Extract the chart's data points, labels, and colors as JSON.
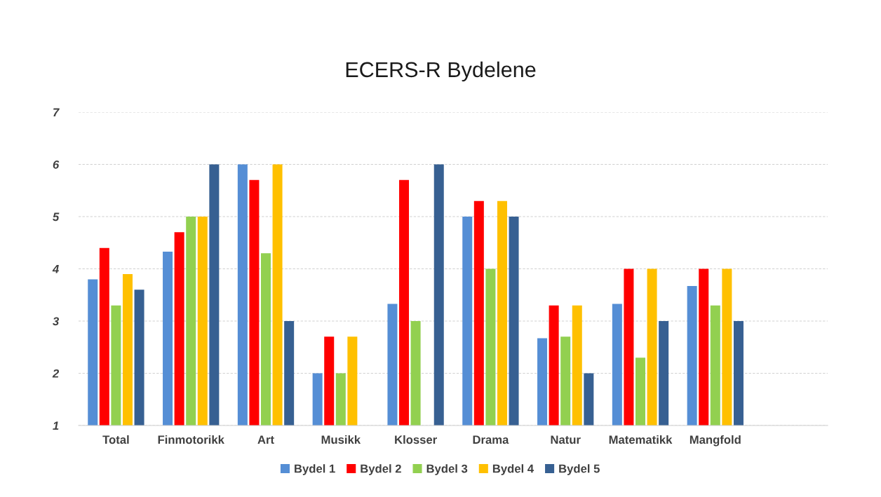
{
  "chart_data": {
    "type": "bar",
    "title": "ECERS-R Bydelene",
    "categories": [
      "Total",
      "Finmotorikk",
      "Art",
      "Musikk",
      "Klosser",
      "Drama",
      "Natur",
      "Matematikk",
      "Mangfold",
      null
    ],
    "series": [
      {
        "name": "Bydel 1",
        "color": "#558ed5",
        "values": [
          3.8,
          4.33,
          6,
          2,
          3.33,
          5,
          2.67,
          3.33,
          3.67,
          null
        ]
      },
      {
        "name": "Bydel 2",
        "color": "#ff0000",
        "values": [
          4.4,
          4.7,
          5.7,
          2.7,
          5.7,
          5.3,
          3.3,
          4,
          4,
          null
        ]
      },
      {
        "name": "Bydel 3",
        "color": "#92d050",
        "values": [
          3.3,
          5,
          4.3,
          2,
          3,
          4,
          2.7,
          2.3,
          3.3,
          null
        ]
      },
      {
        "name": "Bydel 4",
        "color": "#ffc000",
        "values": [
          3.9,
          5,
          6,
          2.7,
          null,
          5.3,
          3.3,
          4,
          4,
          null
        ]
      },
      {
        "name": "Bydel 5",
        "color": "#376092",
        "values": [
          3.6,
          6,
          3,
          null,
          6,
          5,
          2,
          3,
          3,
          null
        ]
      }
    ],
    "ylim": [
      1,
      7
    ],
    "yticks": [
      1,
      2,
      3,
      4,
      5,
      6,
      7
    ],
    "grid": "y",
    "legend": "bottom"
  }
}
